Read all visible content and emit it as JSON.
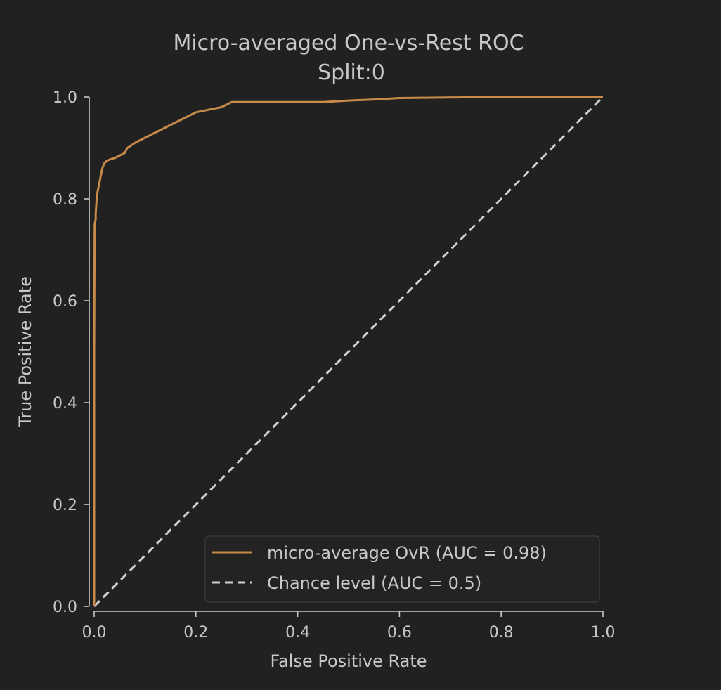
{
  "chart_data": {
    "type": "line",
    "title": "Micro-averaged One-vs-Rest ROC",
    "subtitle": "Split:0",
    "xlabel": "False Positive Rate",
    "ylabel": "True Positive Rate",
    "xlim": [
      0,
      1
    ],
    "ylim": [
      0,
      1
    ],
    "x_ticks": [
      "0.0",
      "0.2",
      "0.4",
      "0.6",
      "0.8",
      "1.0"
    ],
    "y_ticks": [
      "0.0",
      "0.2",
      "0.4",
      "0.6",
      "0.8",
      "1.0"
    ],
    "grid": false,
    "legend_position": "lower-right",
    "series": [
      {
        "name": "micro-average OvR (AUC = 0.98)",
        "color": "#c68a4a",
        "style": "solid",
        "x": [
          0.0,
          0.0,
          0.001,
          0.001,
          0.003,
          0.003,
          0.005,
          0.006,
          0.008,
          0.01,
          0.012,
          0.014,
          0.016,
          0.018,
          0.02,
          0.025,
          0.03,
          0.04,
          0.05,
          0.06,
          0.065,
          0.07,
          0.08,
          0.09,
          0.1,
          0.11,
          0.13,
          0.15,
          0.17,
          0.18,
          0.2,
          0.25,
          0.27,
          0.3,
          0.45,
          0.5,
          0.55,
          0.6,
          0.8,
          1.0
        ],
        "y": [
          0.0,
          0.5,
          0.74,
          0.75,
          0.76,
          0.77,
          0.8,
          0.81,
          0.82,
          0.83,
          0.84,
          0.85,
          0.86,
          0.865,
          0.87,
          0.875,
          0.877,
          0.88,
          0.885,
          0.89,
          0.9,
          0.903,
          0.91,
          0.915,
          0.92,
          0.925,
          0.935,
          0.945,
          0.955,
          0.96,
          0.97,
          0.98,
          0.99,
          0.99,
          0.99,
          0.993,
          0.995,
          0.998,
          1.0,
          1.0
        ]
      },
      {
        "name": "Chance level (AUC = 0.5)",
        "color": "#d0d0d0",
        "style": "dashed",
        "x": [
          0,
          1
        ],
        "y": [
          0,
          1
        ]
      }
    ]
  }
}
